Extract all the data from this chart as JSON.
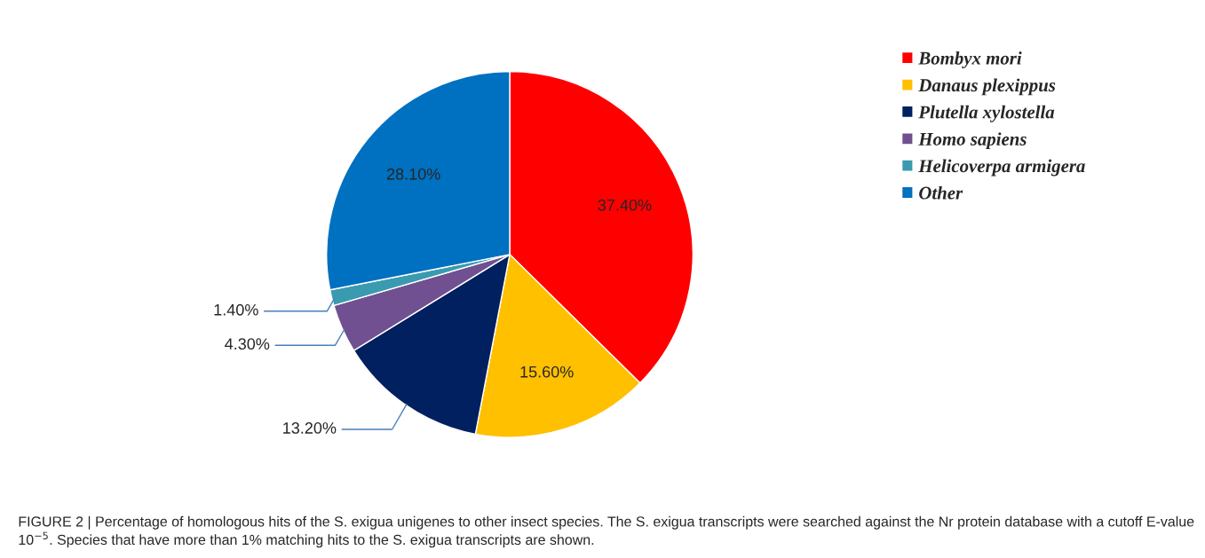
{
  "chart_data": {
    "type": "pie",
    "categories": [
      "Bombyx mori",
      "Danaus plexippus",
      "Plutella xylostella",
      "Homo sapiens",
      "Helicoverpa armigera",
      "Other"
    ],
    "values": [
      37.4,
      15.6,
      13.2,
      4.3,
      1.4,
      28.1
    ],
    "value_labels": [
      "37.40%",
      "15.60%",
      "13.20%",
      "4.30%",
      "1.40%",
      "28.10%"
    ],
    "colors": [
      "#ff0000",
      "#ffc000",
      "#002060",
      "#705090",
      "#3a9bb0",
      "#0070c0"
    ],
    "legend": "top right",
    "annotations": [
      "FIGURE 2 | Percentage of homologous hits of the S. exigua unigenes to other insect species. The S. exigua transcripts were searched against the Nr protein database with a cutoff E-value 10$^{−5}$. Species that have more than 1% matching hits to the S. exigua transcripts are shown."
    ]
  }
}
